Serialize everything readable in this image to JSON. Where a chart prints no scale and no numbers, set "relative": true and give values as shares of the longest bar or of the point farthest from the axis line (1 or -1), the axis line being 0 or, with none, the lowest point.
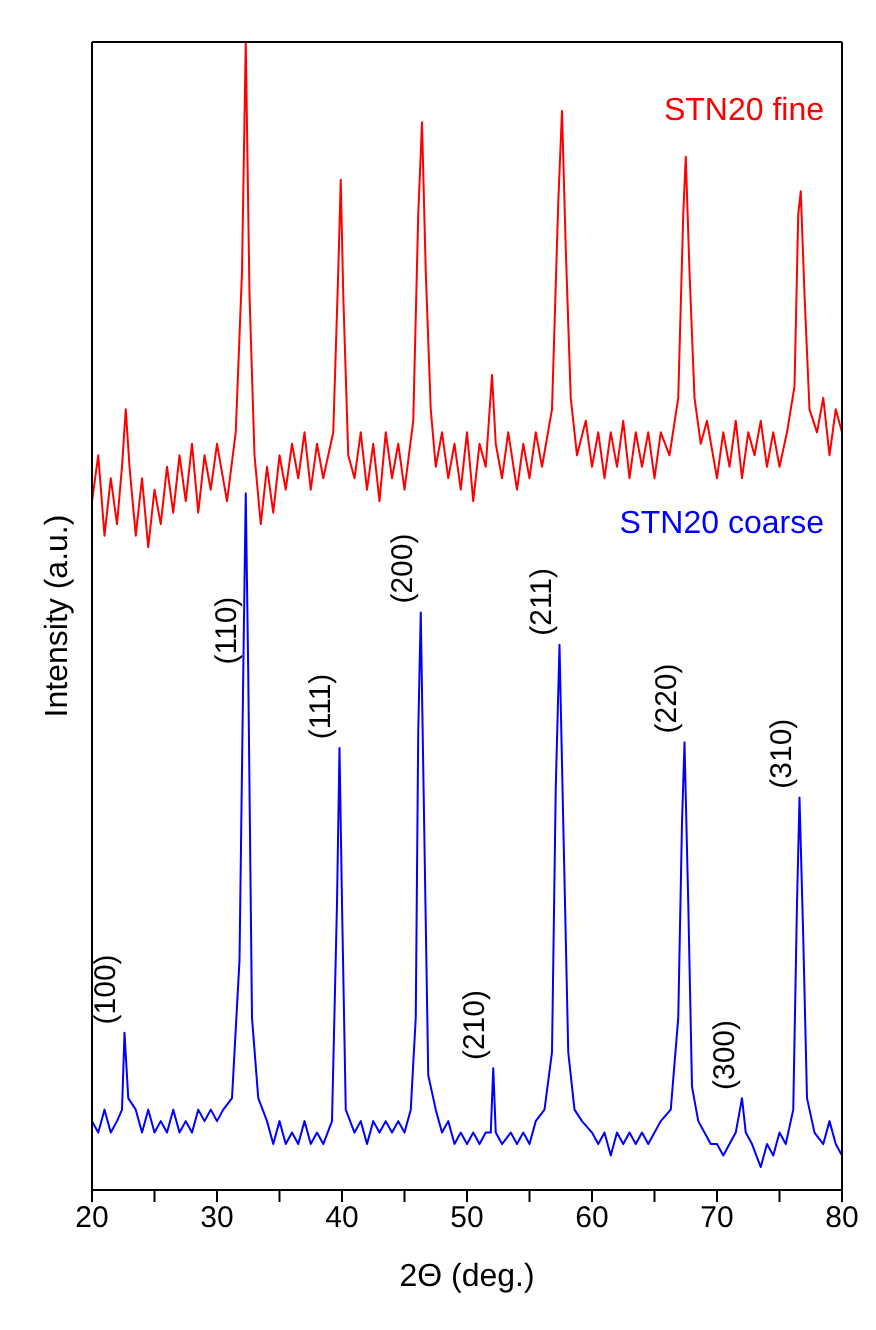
{
  "chart_data": {
    "type": "line",
    "relative": true,
    "xlabel": "2Θ (deg.)",
    "ylabel": "Intensity (a.u.)",
    "xlim": [
      20,
      80
    ],
    "xticks": [
      20,
      {
        "value": 25,
        "label": null
      },
      30,
      {
        "value": 35,
        "label": null
      },
      40,
      {
        "value": 45,
        "label": null
      },
      50,
      {
        "value": 55,
        "label": null
      },
      60,
      {
        "value": 65,
        "label": null
      },
      70,
      {
        "value": 75,
        "label": null
      },
      80
    ],
    "series": [
      {
        "name": "STN20 fine",
        "color": "#ff0000",
        "x": [
          20,
          20.5,
          21,
          21.5,
          22,
          22.4,
          22.7,
          23,
          23.5,
          24,
          24.5,
          25,
          25.5,
          26,
          26.5,
          27,
          27.5,
          28,
          28.5,
          29,
          29.5,
          30,
          30.8,
          31.5,
          32.0,
          32.3,
          32.6,
          33.0,
          33.5,
          34,
          34.5,
          35,
          35.5,
          36,
          36.5,
          37,
          37.5,
          38,
          38.5,
          39.3,
          39.7,
          39.9,
          40.1,
          40.5,
          41,
          41.5,
          42,
          42.5,
          43,
          43.5,
          44,
          44.5,
          45,
          45.7,
          46.1,
          46.4,
          46.7,
          47.1,
          47.5,
          48,
          48.5,
          49,
          49.5,
          50,
          50.5,
          51,
          51.5,
          52,
          52.3,
          52.8,
          53.3,
          54,
          54.5,
          55,
          55.5,
          56,
          56.8,
          57.3,
          57.6,
          57.9,
          58.3,
          58.8,
          59.5,
          60,
          60.5,
          61,
          61.5,
          62,
          62.5,
          63,
          63.5,
          64,
          64.5,
          65,
          65.5,
          66.2,
          66.9,
          67.3,
          67.5,
          67.8,
          68.2,
          68.7,
          69.2,
          70,
          70.5,
          71,
          71.5,
          72,
          72.5,
          73,
          73.5,
          74,
          74.5,
          75,
          75.6,
          76.2,
          76.5,
          76.7,
          77,
          77.4,
          78,
          78.5,
          79,
          79.5,
          80
        ],
        "values": [
          0.6,
          0.64,
          0.57,
          0.62,
          0.58,
          0.63,
          0.68,
          0.63,
          0.57,
          0.62,
          0.56,
          0.61,
          0.58,
          0.63,
          0.59,
          0.64,
          0.6,
          0.65,
          0.59,
          0.64,
          0.61,
          0.65,
          0.6,
          0.66,
          0.8,
          1.0,
          0.78,
          0.64,
          0.58,
          0.63,
          0.59,
          0.64,
          0.61,
          0.65,
          0.62,
          0.66,
          0.61,
          0.65,
          0.62,
          0.66,
          0.8,
          0.88,
          0.78,
          0.64,
          0.62,
          0.66,
          0.61,
          0.65,
          0.6,
          0.66,
          0.62,
          0.65,
          0.61,
          0.67,
          0.85,
          0.93,
          0.8,
          0.68,
          0.63,
          0.66,
          0.62,
          0.65,
          0.61,
          0.66,
          0.6,
          0.65,
          0.63,
          0.71,
          0.65,
          0.62,
          0.66,
          0.61,
          0.65,
          0.62,
          0.66,
          0.63,
          0.68,
          0.86,
          0.94,
          0.82,
          0.69,
          0.64,
          0.67,
          0.63,
          0.66,
          0.62,
          0.66,
          0.63,
          0.67,
          0.62,
          0.66,
          0.63,
          0.66,
          0.62,
          0.66,
          0.64,
          0.69,
          0.85,
          0.9,
          0.8,
          0.69,
          0.65,
          0.67,
          0.62,
          0.66,
          0.63,
          0.67,
          0.62,
          0.66,
          0.64,
          0.67,
          0.63,
          0.66,
          0.63,
          0.66,
          0.7,
          0.85,
          0.87,
          0.78,
          0.68,
          0.66,
          0.69,
          0.64,
          0.68,
          0.66
        ]
      },
      {
        "name": "STN20 coarse",
        "color": "#0000ff",
        "x": [
          20,
          20.5,
          21,
          21.5,
          22,
          22.4,
          22.6,
          22.9,
          23.5,
          24,
          24.5,
          25,
          25.5,
          26,
          26.5,
          27,
          27.5,
          28,
          28.5,
          29,
          29.5,
          30,
          30.5,
          31.2,
          31.8,
          32.1,
          32.3,
          32.5,
          32.8,
          33.3,
          34,
          34.5,
          35,
          35.5,
          36,
          36.5,
          37,
          37.5,
          38,
          38.5,
          39.2,
          39.6,
          39.8,
          40.0,
          40.3,
          41,
          41.5,
          42,
          42.5,
          43,
          43.5,
          44,
          44.5,
          45,
          45.5,
          45.9,
          46.1,
          46.3,
          46.6,
          46.9,
          47.5,
          48,
          48.5,
          49,
          49.5,
          50,
          50.5,
          51,
          51.5,
          51.9,
          52.1,
          52.3,
          52.8,
          53.5,
          54,
          54.5,
          55,
          55.5,
          56.2,
          56.8,
          57.1,
          57.4,
          57.7,
          58.1,
          58.6,
          59.2,
          60,
          60.5,
          61,
          61.5,
          62,
          62.5,
          63,
          63.5,
          64,
          64.5,
          65,
          65.5,
          66.3,
          66.9,
          67.2,
          67.4,
          67.7,
          68.0,
          68.5,
          69,
          69.5,
          70,
          70.5,
          71,
          71.5,
          72,
          72.3,
          72.8,
          73.5,
          74,
          74.5,
          75,
          75.5,
          76.1,
          76.4,
          76.6,
          76.9,
          77.2,
          77.8,
          78.5,
          79,
          79.5,
          80
        ],
        "values": [
          0.06,
          0.05,
          0.07,
          0.05,
          0.06,
          0.07,
          0.137,
          0.08,
          0.07,
          0.05,
          0.07,
          0.05,
          0.06,
          0.05,
          0.07,
          0.05,
          0.06,
          0.05,
          0.07,
          0.06,
          0.07,
          0.06,
          0.07,
          0.08,
          0.2,
          0.45,
          0.607,
          0.45,
          0.15,
          0.08,
          0.06,
          0.04,
          0.06,
          0.04,
          0.05,
          0.04,
          0.06,
          0.04,
          0.05,
          0.04,
          0.06,
          0.25,
          0.385,
          0.25,
          0.07,
          0.05,
          0.06,
          0.04,
          0.06,
          0.05,
          0.06,
          0.05,
          0.06,
          0.05,
          0.07,
          0.15,
          0.4,
          0.503,
          0.3,
          0.1,
          0.07,
          0.05,
          0.06,
          0.04,
          0.05,
          0.04,
          0.05,
          0.04,
          0.05,
          0.05,
          0.106,
          0.05,
          0.04,
          0.05,
          0.04,
          0.05,
          0.04,
          0.06,
          0.07,
          0.12,
          0.35,
          0.475,
          0.32,
          0.12,
          0.07,
          0.06,
          0.05,
          0.04,
          0.05,
          0.03,
          0.05,
          0.04,
          0.05,
          0.04,
          0.05,
          0.04,
          0.05,
          0.06,
          0.07,
          0.15,
          0.32,
          0.39,
          0.25,
          0.09,
          0.06,
          0.05,
          0.04,
          0.04,
          0.03,
          0.04,
          0.05,
          0.08,
          0.05,
          0.04,
          0.02,
          0.04,
          0.03,
          0.05,
          0.04,
          0.07,
          0.25,
          0.342,
          0.22,
          0.08,
          0.05,
          0.04,
          0.06,
          0.04,
          0.03
        ]
      }
    ],
    "annotations": [
      {
        "text": "(100)",
        "x": 22.6,
        "y": 0.137
      },
      {
        "text": "(110)",
        "x": 32.3,
        "y": 0.45
      },
      {
        "text": "(111)",
        "x": 39.8,
        "y": 0.385
      },
      {
        "text": "(200)",
        "x": 46.3,
        "y": 0.503
      },
      {
        "text": "(210)",
        "x": 52.1,
        "y": 0.106
      },
      {
        "text": "(211)",
        "x": 57.4,
        "y": 0.475
      },
      {
        "text": "(220)",
        "x": 67.4,
        "y": 0.39
      },
      {
        "text": "(300)",
        "x": 72,
        "y": 0.08
      },
      {
        "text": "(310)",
        "x": 76.6,
        "y": 0.342
      }
    ]
  }
}
